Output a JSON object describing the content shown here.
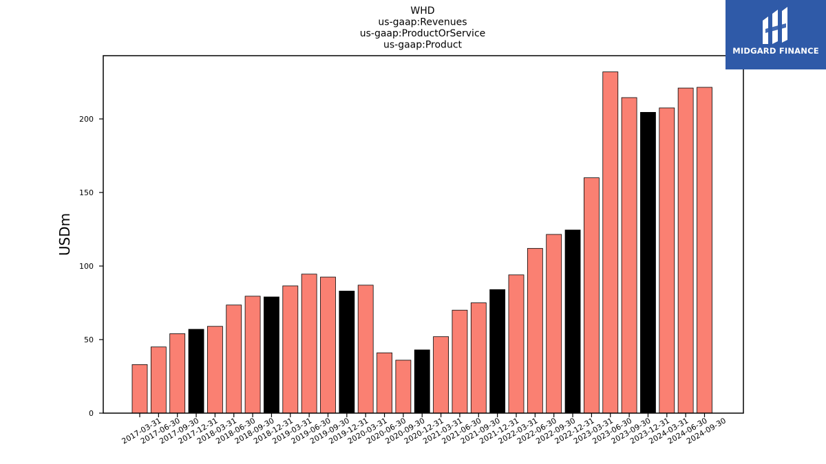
{
  "logo": {
    "text": "MIDGARD FINANCE",
    "background": "#2f5aa8"
  },
  "chart_data": {
    "type": "bar",
    "title_lines": [
      "WHD",
      "us-gaap:Revenues",
      "us-gaap:ProductOrService",
      "us-gaap:Product"
    ],
    "xlabel": "",
    "ylabel": "USDm",
    "ylim": [
      0,
      243
    ],
    "yticks": [
      0,
      50,
      100,
      150,
      200
    ],
    "grid": false,
    "colors": {
      "default": "#fa8072",
      "highlight": "#000000",
      "edge": "#000000"
    },
    "categories": [
      "2017-03-31",
      "2017-06-30",
      "2017-09-30",
      "2017-12-31",
      "2018-03-31",
      "2018-06-30",
      "2018-09-30",
      "2018-12-31",
      "2019-03-31",
      "2019-06-30",
      "2019-09-30",
      "2019-12-31",
      "2020-03-31",
      "2020-06-30",
      "2020-09-30",
      "2020-12-31",
      "2021-03-31",
      "2021-06-30",
      "2021-09-30",
      "2021-12-31",
      "2022-03-31",
      "2022-06-30",
      "2022-09-30",
      "2022-12-31",
      "2023-03-31",
      "2023-06-30",
      "2023-09-30",
      "2023-12-31",
      "2024-03-31",
      "2024-06-30",
      "2024-09-30"
    ],
    "values": [
      33,
      45,
      54,
      57,
      59,
      73.5,
      79.5,
      79,
      86.5,
      94.5,
      92.5,
      83,
      87,
      41,
      36,
      43,
      52,
      70,
      75,
      84,
      94,
      112,
      121.5,
      124.5,
      160,
      232,
      214.5,
      204.5,
      207.5,
      221,
      221.5
    ],
    "highlight": [
      false,
      false,
      false,
      true,
      false,
      false,
      false,
      true,
      false,
      false,
      false,
      true,
      false,
      false,
      false,
      true,
      false,
      false,
      false,
      true,
      false,
      false,
      false,
      true,
      false,
      false,
      false,
      true,
      false,
      false,
      false
    ]
  }
}
